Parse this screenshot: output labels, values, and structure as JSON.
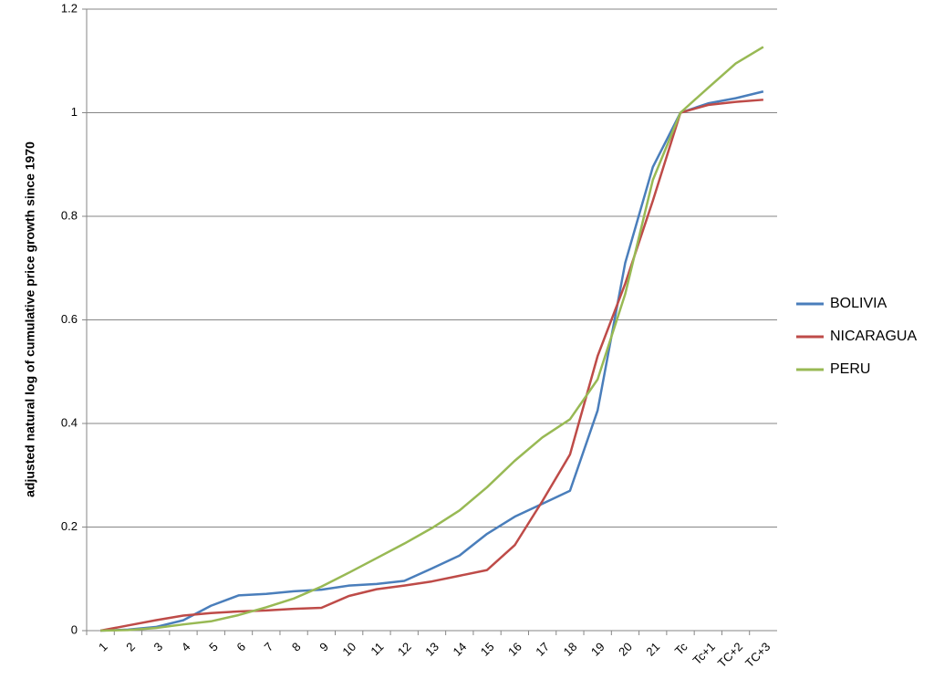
{
  "chart_data": {
    "type": "line",
    "y_label": "adjusted natural log of cumulative price growth since 1970",
    "categories": [
      "1",
      "2",
      "3",
      "4",
      "5",
      "6",
      "7",
      "8",
      "9",
      "10",
      "11",
      "12",
      "13",
      "14",
      "15",
      "16",
      "17",
      "18",
      "19",
      "20",
      "21",
      "Tc",
      "Tc+1",
      "TC+2",
      "TC+3"
    ],
    "series": [
      {
        "name": "BOLIVIA",
        "color": "#4a7ebb",
        "values": [
          0,
          0.002,
          0.007,
          0.02,
          0.048,
          0.068,
          0.071,
          0.076,
          0.079,
          0.087,
          0.09,
          0.096,
          0.12,
          0.145,
          0.187,
          0.22,
          0.245,
          0.27,
          0.425,
          0.71,
          0.895,
          1.0,
          1.018,
          1.028,
          1.041
        ]
      },
      {
        "name": "NICARAGUA",
        "color": "#be4b48",
        "values": [
          0,
          0.01,
          0.02,
          0.029,
          0.034,
          0.037,
          0.039,
          0.042,
          0.044,
          0.067,
          0.08,
          0.087,
          0.095,
          0.106,
          0.117,
          0.165,
          0.25,
          0.34,
          0.53,
          0.67,
          0.83,
          1.0,
          1.015,
          1.021,
          1.025
        ]
      },
      {
        "name": "PERU",
        "color": "#98b954",
        "values": [
          0,
          0.001,
          0.005,
          0.012,
          0.018,
          0.03,
          0.045,
          0.062,
          0.085,
          0.112,
          0.14,
          0.168,
          0.198,
          0.232,
          0.277,
          0.328,
          0.373,
          0.408,
          0.485,
          0.65,
          0.87,
          1.0,
          1.048,
          1.095,
          1.127
        ]
      }
    ],
    "ylim": [
      0,
      1.2
    ],
    "yticks": [
      0,
      0.2,
      0.4,
      0.6,
      0.8,
      1,
      1.2
    ],
    "grid": true,
    "legend": "right"
  }
}
